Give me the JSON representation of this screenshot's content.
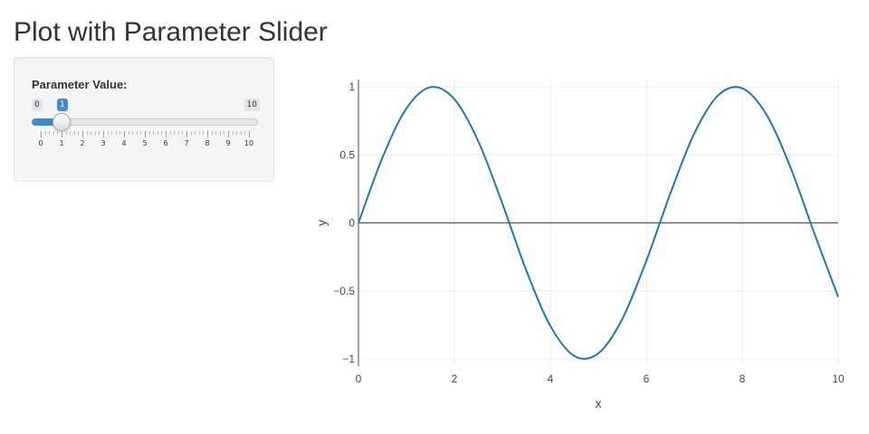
{
  "page": {
    "title": "Plot with Parameter Slider"
  },
  "sidebar": {
    "param_label": "Parameter Value:",
    "slider": {
      "min": 0,
      "max": 10,
      "value": 1,
      "min_label": "0",
      "max_label": "10",
      "value_label": "1",
      "tick_labels": [
        "0",
        "1",
        "2",
        "3",
        "4",
        "5",
        "6",
        "7",
        "8",
        "9",
        "10"
      ],
      "accent": "#428bca"
    }
  },
  "chart_data": {
    "type": "line",
    "title": "",
    "xlabel": "x",
    "ylabel": "y",
    "xlim": [
      0,
      10
    ],
    "ylim": [
      -1,
      1
    ],
    "xticks": [
      0,
      2,
      4,
      6,
      8,
      10
    ],
    "xtick_labels": [
      "0",
      "2",
      "4",
      "6",
      "8",
      "10"
    ],
    "yticks": [
      -1,
      -0.5,
      0,
      0.5,
      1
    ],
    "ytick_labels": [
      "−1",
      "−0.5",
      "0",
      "0.5",
      "1"
    ],
    "grid": true,
    "series": [
      {
        "color": "#1f77b4",
        "x": [
          0,
          0.5,
          1,
          1.5,
          2,
          2.5,
          3,
          3.5,
          4,
          4.5,
          5,
          5.5,
          6,
          6.5,
          7,
          7.5,
          8,
          8.5,
          9,
          9.5,
          10
        ],
        "y": [
          0,
          0.479,
          0.841,
          0.997,
          0.909,
          0.598,
          0.141,
          -0.351,
          -0.757,
          -0.978,
          -0.959,
          -0.706,
          -0.279,
          0.215,
          0.657,
          0.938,
          0.989,
          0.798,
          0.412,
          -0.075,
          -0.544
        ]
      }
    ]
  }
}
